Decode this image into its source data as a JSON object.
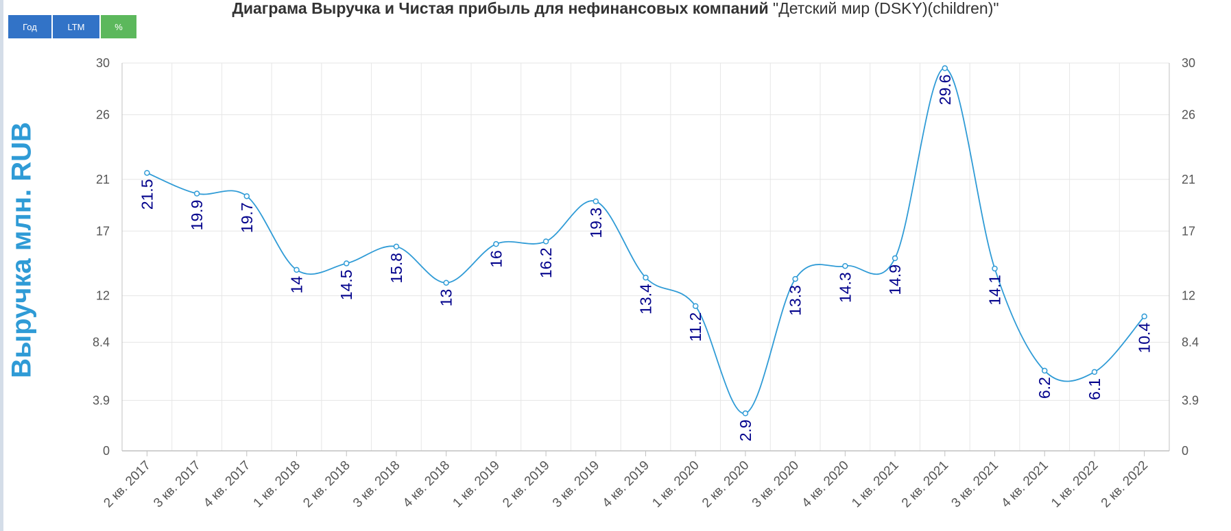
{
  "header": {
    "title_bold": "Диаграма Выручка и Чистая прибыль для нефинансовых компаний",
    "title_rest": "\"Детский мир (DSKY)(children)\""
  },
  "toolbar": {
    "year_label": "Год",
    "ltm_label": "LTM",
    "pct_label": "%"
  },
  "colors": {
    "line": "#2f9bd6",
    "label": "#00008b",
    "grid": "#e6e6e6",
    "button_blue": "#3273c7",
    "button_green": "#5cb85c"
  },
  "chart_data": {
    "type": "line",
    "smooth": true,
    "ylabel": "Выручка млн. RUB",
    "ylim": [
      0,
      30
    ],
    "yticks": [
      "0",
      "3.9",
      "8.4",
      "12",
      "17",
      "21",
      "26",
      "30"
    ],
    "grid": true,
    "categories": [
      "2 кв. 2017",
      "3 кв. 2017",
      "4 кв. 2017",
      "1 кв. 2018",
      "2 кв. 2018",
      "3 кв. 2018",
      "4 кв. 2018",
      "1 кв. 2019",
      "2 кв. 2019",
      "3 кв. 2019",
      "4 кв. 2019",
      "1 кв. 2020",
      "2 кв. 2020",
      "3 кв. 2020",
      "4 кв. 2020",
      "1 кв. 2021",
      "2 кв. 2021",
      "3 кв. 2021",
      "4 кв. 2021",
      "1 кв. 2022",
      "2 кв. 2022"
    ],
    "values": [
      21.5,
      19.9,
      19.7,
      14,
      14.5,
      15.8,
      13,
      16,
      16.2,
      19.3,
      13.4,
      11.2,
      2.9,
      13.3,
      14.3,
      14.9,
      29.6,
      14.1,
      6.2,
      6.1,
      10.4
    ],
    "data_labels": [
      "21.5",
      "19.9",
      "19.7",
      "14",
      "14.5",
      "15.8",
      "13",
      "16",
      "16.2",
      "19.3",
      "13.4",
      "11.2",
      "2.9",
      "13.3",
      "14.3",
      "14.9",
      "29.6",
      "14.1",
      "6.2",
      "6.1",
      "10.4"
    ]
  }
}
